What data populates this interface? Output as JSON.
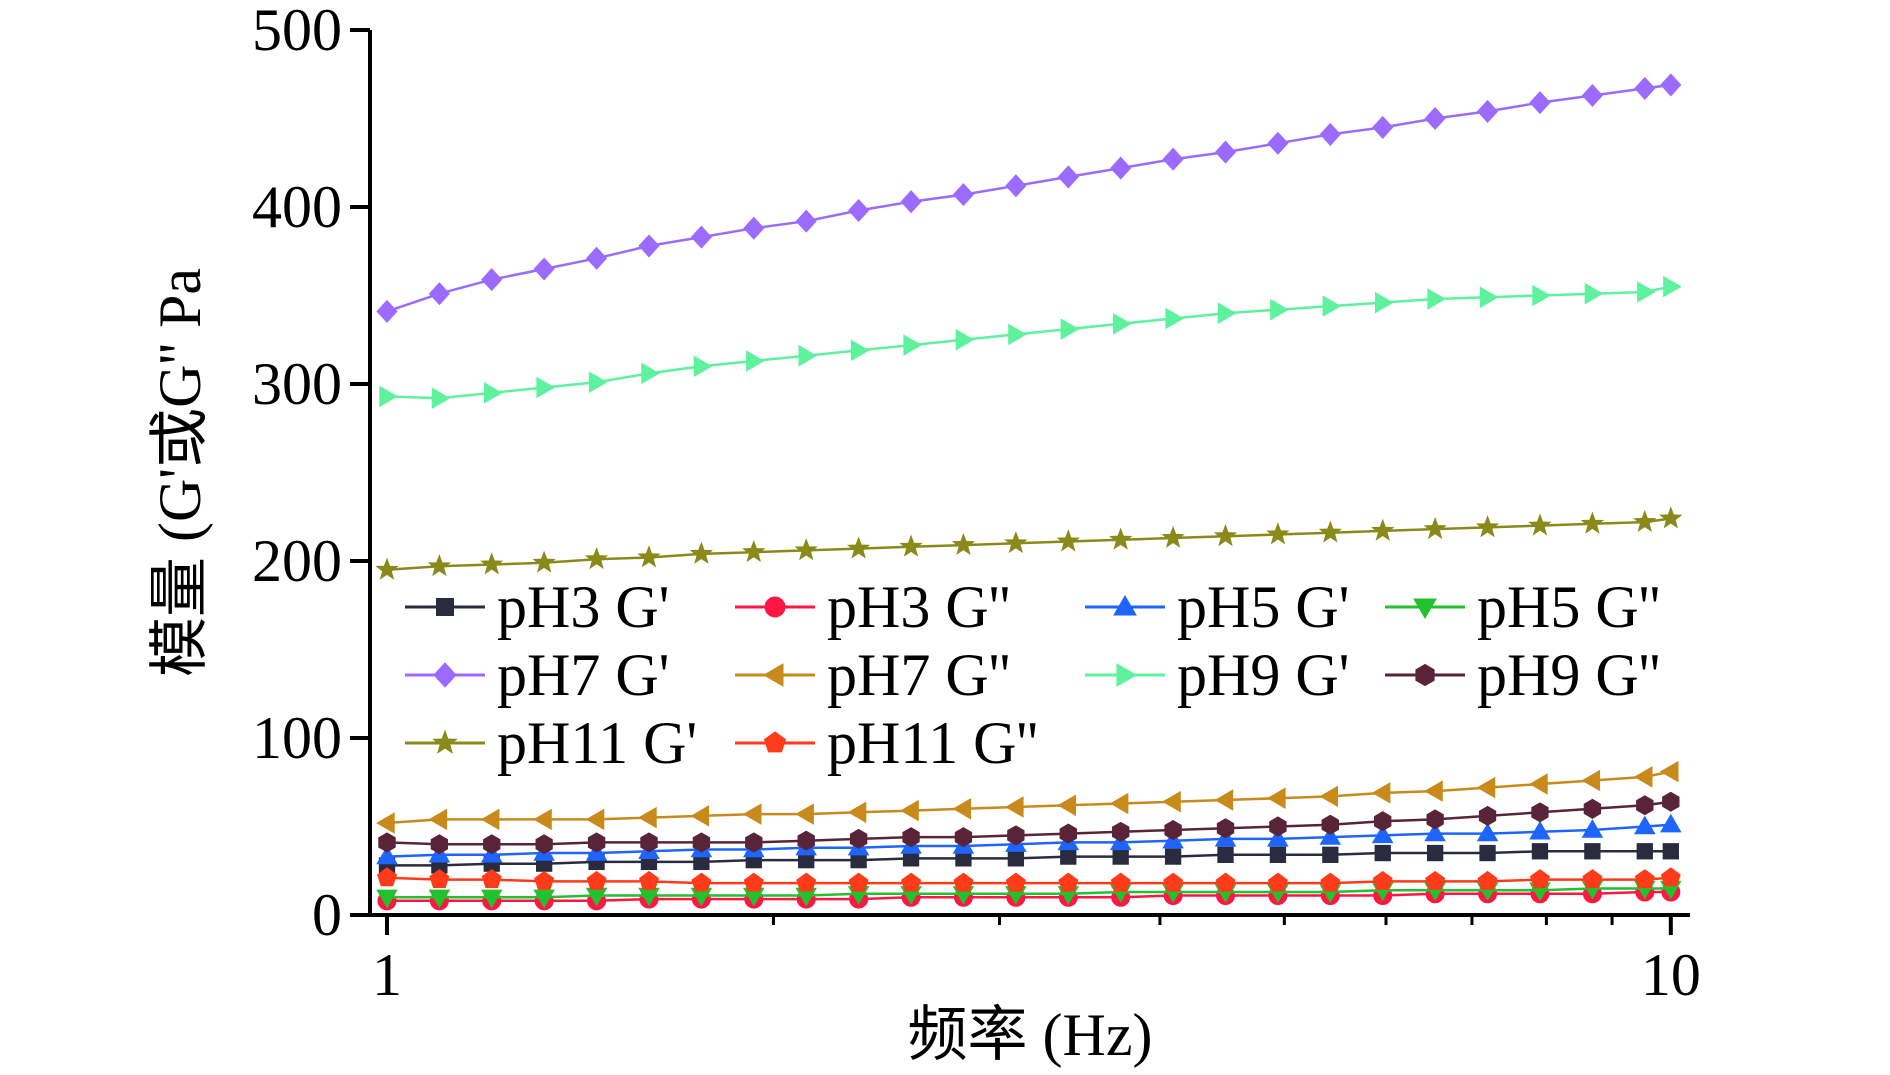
{
  "chart_data": {
    "type": "line",
    "xlabel": "频率 (Hz)",
    "ylabel": "模量 (G'或G'' Pa",
    "xscale": "log",
    "xlim": [
      0.97,
      10.35
    ],
    "ylim": [
      0,
      500
    ],
    "x_ticks": [
      {
        "value": 1,
        "label": "1"
      },
      {
        "value": 10,
        "label": "10"
      }
    ],
    "y_ticks": [
      {
        "value": 0,
        "label": "0"
      },
      {
        "value": 100,
        "label": "100"
      },
      {
        "value": 200,
        "label": "200"
      },
      {
        "value": 300,
        "label": "300"
      },
      {
        "value": 400,
        "label": "400"
      },
      {
        "value": 500,
        "label": "500"
      }
    ],
    "grid": false,
    "legend_position": "center",
    "x": [
      1,
      1.0985,
      1.2067,
      1.3256,
      1.4563,
      1.5998,
      1.7575,
      1.9307,
      2.121,
      2.3301,
      2.5598,
      2.812,
      3.0892,
      3.3937,
      3.7281,
      4.0956,
      4.4992,
      4.9427,
      5.4298,
      5.9649,
      6.5528,
      7.1987,
      7.9081,
      8.6876,
      9.5438,
      10
    ],
    "series": [
      {
        "name": "pH3 G'",
        "color": "#2b2b3f",
        "marker": "square",
        "values": [
          28,
          28,
          29,
          29,
          30,
          30,
          30,
          31,
          31,
          31,
          32,
          32,
          32,
          33,
          33,
          33,
          34,
          34,
          34,
          35,
          35,
          35,
          36,
          36,
          36,
          36
        ]
      },
      {
        "name": "pH3 G''",
        "color": "#ff1744",
        "marker": "circle",
        "values": [
          8,
          8,
          8,
          8,
          8,
          9,
          9,
          9,
          9,
          9,
          10,
          10,
          10,
          10,
          10,
          11,
          11,
          11,
          11,
          11,
          12,
          12,
          12,
          12,
          13,
          13
        ]
      },
      {
        "name": "pH5 G'",
        "color": "#1e64ff",
        "marker": "triangle-up",
        "values": [
          33,
          34,
          34,
          35,
          35,
          36,
          37,
          37,
          38,
          38,
          39,
          39,
          40,
          41,
          41,
          42,
          43,
          43,
          44,
          45,
          46,
          46,
          47,
          48,
          50,
          51
        ]
      },
      {
        "name": "pH5 G''",
        "color": "#22c22e",
        "marker": "triangle-down",
        "values": [
          10,
          10,
          10,
          10,
          11,
          11,
          11,
          11,
          11,
          12,
          12,
          12,
          12,
          12,
          13,
          13,
          13,
          13,
          13,
          14,
          14,
          14,
          14,
          15,
          15,
          15
        ]
      },
      {
        "name": "pH7 G'",
        "color": "#9b6bff",
        "marker": "diamond",
        "values": [
          341,
          351,
          359,
          365,
          371,
          378,
          383,
          388,
          392,
          398,
          403,
          407,
          412,
          417,
          422,
          427,
          431,
          436,
          441,
          445,
          450,
          454,
          459,
          463,
          467,
          469
        ]
      },
      {
        "name": "pH7 G''",
        "color": "#c98a1c",
        "marker": "triangle-left",
        "values": [
          52,
          54,
          54,
          54,
          54,
          55,
          56,
          57,
          57,
          58,
          59,
          60,
          61,
          62,
          63,
          64,
          65,
          66,
          67,
          69,
          70,
          72,
          74,
          76,
          78,
          81
        ]
      },
      {
        "name": "pH9 G'",
        "color": "#5ef29e",
        "marker": "triangle-right",
        "values": [
          293,
          292,
          295,
          298,
          301,
          306,
          310,
          313,
          316,
          319,
          322,
          325,
          328,
          331,
          334,
          337,
          340,
          342,
          344,
          346,
          348,
          349,
          350,
          351,
          352,
          355
        ]
      },
      {
        "name": "pH9 G''",
        "color": "#5a2438",
        "marker": "hexagon",
        "values": [
          41,
          40,
          40,
          40,
          41,
          41,
          41,
          41,
          42,
          43,
          44,
          44,
          45,
          46,
          47,
          48,
          49,
          50,
          51,
          53,
          54,
          56,
          58,
          60,
          62,
          64
        ]
      },
      {
        "name": "pH11 G'",
        "color": "#8a8a1a",
        "marker": "star",
        "values": [
          195,
          197,
          198,
          199,
          201,
          202,
          204,
          205,
          206,
          207,
          208,
          209,
          210,
          211,
          212,
          213,
          214,
          215,
          216,
          217,
          218,
          219,
          220,
          221,
          222,
          224
        ]
      },
      {
        "name": "pH11 G''",
        "color": "#ff3b1a",
        "marker": "pentagon",
        "values": [
          21,
          20,
          20,
          19,
          19,
          19,
          18,
          18,
          18,
          18,
          18,
          18,
          18,
          18,
          18,
          18,
          18,
          18,
          18,
          19,
          19,
          19,
          20,
          20,
          20,
          21
        ]
      }
    ]
  }
}
